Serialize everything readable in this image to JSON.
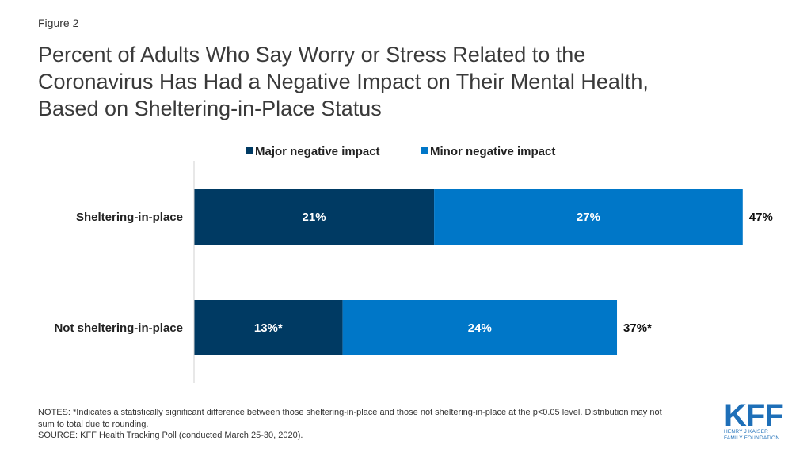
{
  "figure_label": "Figure 2",
  "title_lines": [
    "Percent of Adults Who Say Worry or Stress Related to the",
    "Coronavirus Has Had a Negative Impact on Their Mental Health,",
    "Based on Sheltering-in-Place Status"
  ],
  "notes": {
    "line1": "NOTES: *Indicates a statistically significant difference between those sheltering-in-place and those not sheltering-in-place at the p<0.05 level. Distribution may not",
    "line2": "sum to total due to rounding.",
    "source": "SOURCE: KFF Health Tracking Poll (conducted March 25-30, 2020)."
  },
  "logo": {
    "mark": "KFF",
    "line1": "HENRY J KAISER",
    "line2": "FAMILY FOUNDATION"
  },
  "chart_data": {
    "type": "bar",
    "orientation": "horizontal",
    "stacked": true,
    "categories": [
      "Sheltering-in-place",
      "Not sheltering-in-place"
    ],
    "series": [
      {
        "name": "Major negative impact",
        "values": [
          21,
          13
        ],
        "labels": [
          "21%",
          "13%*"
        ],
        "color": "#003a63"
      },
      {
        "name": "Minor negative impact",
        "values": [
          27,
          24
        ],
        "labels": [
          "27%",
          "24%"
        ],
        "color": "#0077c8"
      }
    ],
    "totals": [
      47,
      37
    ],
    "total_labels": [
      "47%",
      "37%*"
    ],
    "xlim": [
      0,
      48.5
    ],
    "grid": false,
    "legend_position": "top"
  }
}
